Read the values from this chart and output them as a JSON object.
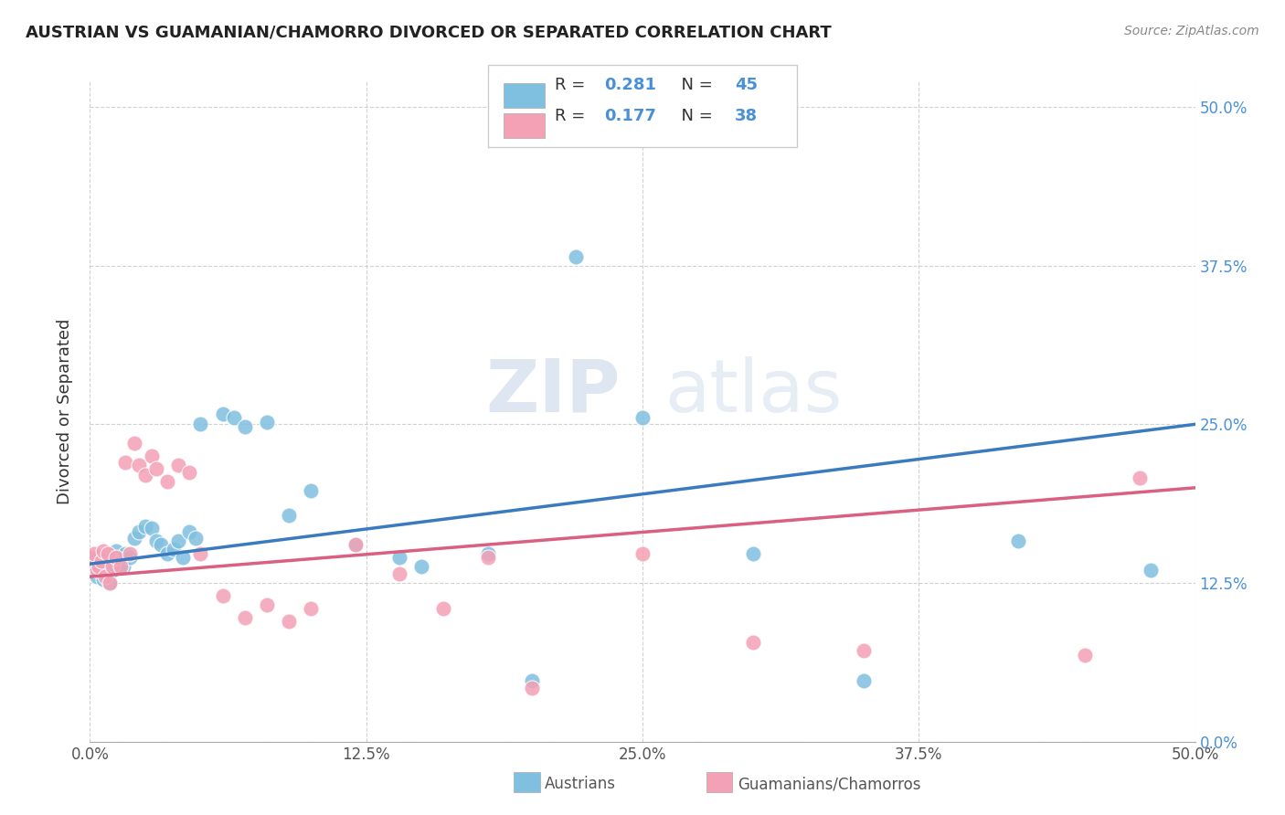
{
  "title": "AUSTRIAN VS GUAMANIAN/CHAMORRO DIVORCED OR SEPARATED CORRELATION CHART",
  "source": "Source: ZipAtlas.com",
  "ylabel_label": "Divorced or Separated",
  "xlim": [
    0.0,
    0.5
  ],
  "ylim": [
    0.0,
    0.52
  ],
  "blue_color": "#7fbfdf",
  "pink_color": "#f4a0b5",
  "line_blue": "#3a7bbf",
  "line_pink": "#d96080",
  "watermark_zip": "ZIP",
  "watermark_atlas": "atlas",
  "austrians_x": [
    0.001,
    0.002,
    0.003,
    0.004,
    0.005,
    0.006,
    0.007,
    0.008,
    0.009,
    0.01,
    0.012,
    0.013,
    0.015,
    0.016,
    0.018,
    0.02,
    0.022,
    0.025,
    0.028,
    0.03,
    0.032,
    0.035,
    0.038,
    0.04,
    0.042,
    0.045,
    0.048,
    0.05,
    0.06,
    0.065,
    0.07,
    0.08,
    0.09,
    0.1,
    0.12,
    0.14,
    0.15,
    0.18,
    0.2,
    0.22,
    0.25,
    0.3,
    0.35,
    0.42,
    0.48
  ],
  "austrians_y": [
    0.135,
    0.14,
    0.13,
    0.145,
    0.138,
    0.128,
    0.132,
    0.142,
    0.125,
    0.135,
    0.15,
    0.14,
    0.138,
    0.148,
    0.145,
    0.16,
    0.165,
    0.17,
    0.168,
    0.158,
    0.155,
    0.148,
    0.152,
    0.158,
    0.145,
    0.165,
    0.16,
    0.25,
    0.258,
    0.255,
    0.248,
    0.252,
    0.178,
    0.198,
    0.155,
    0.145,
    0.138,
    0.148,
    0.048,
    0.382,
    0.255,
    0.148,
    0.048,
    0.158,
    0.135
  ],
  "guamanians_x": [
    0.001,
    0.002,
    0.003,
    0.004,
    0.005,
    0.006,
    0.007,
    0.008,
    0.009,
    0.01,
    0.012,
    0.014,
    0.016,
    0.018,
    0.02,
    0.022,
    0.025,
    0.028,
    0.03,
    0.035,
    0.04,
    0.045,
    0.05,
    0.06,
    0.07,
    0.08,
    0.09,
    0.1,
    0.12,
    0.14,
    0.16,
    0.18,
    0.2,
    0.25,
    0.3,
    0.35,
    0.45,
    0.475
  ],
  "guamanians_y": [
    0.145,
    0.148,
    0.135,
    0.138,
    0.142,
    0.15,
    0.13,
    0.148,
    0.125,
    0.138,
    0.145,
    0.138,
    0.22,
    0.148,
    0.235,
    0.218,
    0.21,
    0.225,
    0.215,
    0.205,
    0.218,
    0.212,
    0.148,
    0.115,
    0.098,
    0.108,
    0.095,
    0.105,
    0.155,
    0.132,
    0.105,
    0.145,
    0.042,
    0.148,
    0.078,
    0.072,
    0.068,
    0.208
  ]
}
